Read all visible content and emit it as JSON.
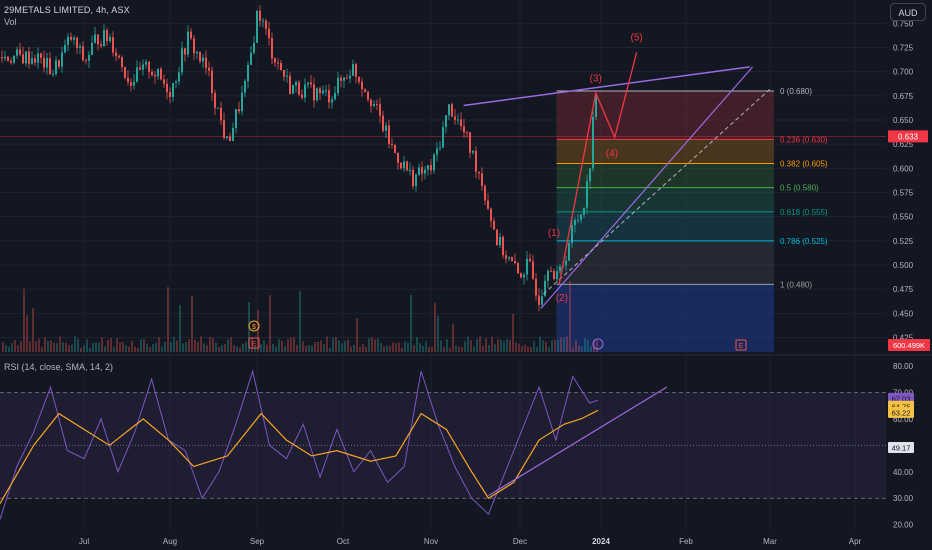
{
  "header": {
    "title": "29METALS LIMITED, 4h, ASX",
    "volume_label": "Vol",
    "currency_button": "AUD"
  },
  "rsi": {
    "title": "RSI (14, close, SMA, 14, 2)",
    "levels": [
      70,
      50,
      30
    ],
    "axis_ticks": [
      "80.00",
      "70.00",
      "60.00",
      "50.00",
      "40.00",
      "30.00",
      "20.00"
    ],
    "badges": [
      {
        "value": "67.03",
        "color": "#7e57c2"
      },
      {
        "value": "64.75",
        "color": "#f6c244"
      },
      {
        "value": "63.22",
        "color": "#f6c244"
      },
      {
        "value": "49.17",
        "color": "#b2b5be"
      }
    ]
  },
  "colors": {
    "background": "#131722",
    "up": "#26a69a",
    "down": "#ef5350",
    "rsi_line": "#7e57c2",
    "rsi_sma": "#f6a623",
    "trendline": "#9c6ade",
    "wave_label": "#f23645"
  },
  "chart_data": [
    {
      "type": "candlestick",
      "title": "29METALS LIMITED, 4h, ASX",
      "x_ticks": [
        "Jul",
        "Aug",
        "Sep",
        "Oct",
        "Nov",
        "Dec",
        "2024",
        "Feb",
        "Mar",
        "Apr"
      ],
      "y_ticks": [
        "0.750",
        "0.725",
        "0.700",
        "0.675",
        "0.650",
        "0.625",
        "0.600",
        "0.575",
        "0.550",
        "0.525",
        "0.500",
        "0.475",
        "0.450",
        "0.425"
      ],
      "ylim": [
        0.41,
        0.77
      ],
      "last_price_label": "0.633",
      "volume_label": "600.499K",
      "price_path": [
        {
          "date": "Jun 14",
          "price": 0.715
        },
        {
          "date": "Jun 20",
          "price": 0.7
        },
        {
          "date": "Jun 26",
          "price": 0.735
        },
        {
          "date": "Jul 1",
          "price": 0.71
        },
        {
          "date": "Jul 5",
          "price": 0.735
        },
        {
          "date": "Jul 10",
          "price": 0.735
        },
        {
          "date": "Jul 17",
          "price": 0.69
        },
        {
          "date": "Jul 24",
          "price": 0.705
        },
        {
          "date": "Aug 1",
          "price": 0.68
        },
        {
          "date": "Aug 7",
          "price": 0.735
        },
        {
          "date": "Aug 14",
          "price": 0.7
        },
        {
          "date": "Aug 21",
          "price": 0.625
        },
        {
          "date": "Aug 28",
          "price": 0.69
        },
        {
          "date": "Sep 1",
          "price": 0.765
        },
        {
          "date": "Sep 6",
          "price": 0.72
        },
        {
          "date": "Sep 12",
          "price": 0.685
        },
        {
          "date": "Sep 19",
          "price": 0.68
        },
        {
          "date": "Sep 26",
          "price": 0.675
        },
        {
          "date": "Oct 4",
          "price": 0.705
        },
        {
          "date": "Oct 11",
          "price": 0.67
        },
        {
          "date": "Oct 18",
          "price": 0.62
        },
        {
          "date": "Oct 25",
          "price": 0.59
        },
        {
          "date": "Nov 1",
          "price": 0.6
        },
        {
          "date": "Nov 7",
          "price": 0.665
        },
        {
          "date": "Nov 12",
          "price": 0.635
        },
        {
          "date": "Nov 17",
          "price": 0.595
        },
        {
          "date": "Nov 23",
          "price": 0.525
        },
        {
          "date": "Nov 30",
          "price": 0.49
        },
        {
          "date": "Dec 4",
          "price": 0.5
        },
        {
          "date": "Dec 8",
          "price": 0.465
        },
        {
          "date": "Dec 12",
          "price": 0.51
        },
        {
          "date": "Dec 14",
          "price": 0.48
        },
        {
          "date": "Dec 18",
          "price": 0.51
        },
        {
          "date": "Dec 21",
          "price": 0.54
        },
        {
          "date": "Dec 24",
          "price": 0.555
        },
        {
          "date": "Dec 27",
          "price": 0.59
        },
        {
          "date": "Dec 29",
          "price": 0.675
        },
        {
          "date": "Dec 31",
          "price": 0.655
        },
        {
          "date": "Jan 2",
          "price": 0.633
        }
      ],
      "fibonacci": {
        "levels": [
          {
            "label": "0 (0.680)",
            "price": 0.68,
            "color": "#b2b5be"
          },
          {
            "label": "0.236 (0.630)",
            "price": 0.63,
            "color": "#f23645"
          },
          {
            "label": "0.382 (0.605)",
            "price": 0.605,
            "color": "#ff9800"
          },
          {
            "label": "0.5 (0.580)",
            "price": 0.58,
            "color": "#4caf50"
          },
          {
            "label": "0.618 (0.555)",
            "price": 0.555,
            "color": "#089981"
          },
          {
            "label": "0.786 (0.525)",
            "price": 0.525,
            "color": "#00bcd4"
          },
          {
            "label": "1 (0.480)",
            "price": 0.48,
            "color": "#9e9e9e"
          }
        ]
      },
      "wave_labels": [
        {
          "label": "(1)",
          "date": "Dec 14",
          "price": 0.53
        },
        {
          "label": "(2)",
          "date": "Dec 17",
          "price": 0.463
        },
        {
          "label": "(3)",
          "date": "Dec 30",
          "price": 0.69
        },
        {
          "label": "(4)",
          "date": "Jan 5",
          "price": 0.612
        },
        {
          "label": "(5)",
          "date": "Jan 14",
          "price": 0.732
        }
      ],
      "event_markers": [
        "$",
        "E",
        "E"
      ]
    },
    {
      "type": "line",
      "title": "RSI (14, close, SMA, 14, 2)",
      "ylim": [
        18,
        83
      ],
      "series": [
        {
          "name": "RSI",
          "values": [
            [
              0,
              22
            ],
            [
              4,
              42
            ],
            [
              8,
              55
            ],
            [
              12,
              72
            ],
            [
              16,
              48
            ],
            [
              20,
              45
            ],
            [
              24,
              60
            ],
            [
              28,
              40
            ],
            [
              32,
              55
            ],
            [
              36,
              75
            ],
            [
              40,
              52
            ],
            [
              44,
              48
            ],
            [
              48,
              30
            ],
            [
              52,
              40
            ],
            [
              56,
              58
            ],
            [
              60,
              78
            ],
            [
              64,
              50
            ],
            [
              68,
              45
            ],
            [
              72,
              58
            ],
            [
              76,
              38
            ],
            [
              80,
              56
            ],
            [
              84,
              40
            ],
            [
              88,
              48
            ],
            [
              92,
              36
            ],
            [
              96,
              42
            ],
            [
              100,
              78
            ],
            [
              104,
              58
            ],
            [
              108,
              42
            ],
            [
              112,
              30
            ],
            [
              116,
              24
            ],
            [
              120,
              40
            ],
            [
              124,
              56
            ],
            [
              128,
              72
            ],
            [
              132,
              52
            ],
            [
              136,
              76
            ],
            [
              140,
              66
            ],
            [
              142,
              67.03
            ]
          ]
        },
        {
          "name": "RSI-based MA",
          "values": [
            [
              0,
              28
            ],
            [
              8,
              50
            ],
            [
              14,
              62
            ],
            [
              20,
              56
            ],
            [
              26,
              50
            ],
            [
              34,
              60
            ],
            [
              40,
              52
            ],
            [
              46,
              42
            ],
            [
              54,
              46
            ],
            [
              62,
              62
            ],
            [
              68,
              52
            ],
            [
              74,
              46
            ],
            [
              80,
              48
            ],
            [
              88,
              44
            ],
            [
              94,
              46
            ],
            [
              100,
              62
            ],
            [
              106,
              56
            ],
            [
              112,
              40
            ],
            [
              116,
              30
            ],
            [
              122,
              36
            ],
            [
              128,
              52
            ],
            [
              134,
              58
            ],
            [
              138,
              60
            ],
            [
              142,
              63.22
            ]
          ]
        }
      ]
    }
  ]
}
